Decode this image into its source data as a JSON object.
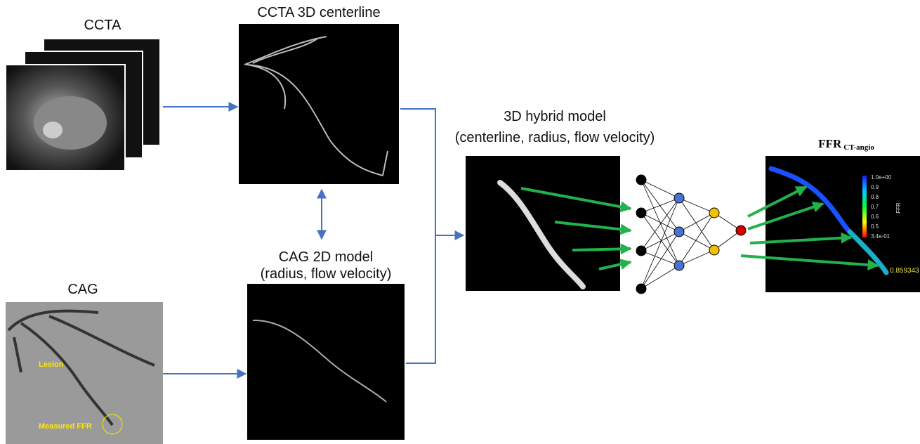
{
  "ccta": {
    "label": "CCTA",
    "centerline_title": "CCTA 3D centerline"
  },
  "cag": {
    "label": "CAG",
    "lesion": "Lesion",
    "measured": "Measured FFR",
    "model_title": [
      "CAG 2D model",
      "(radius, flow velocity)"
    ]
  },
  "hybrid": {
    "title": [
      "3D hybrid model",
      "(centerline, radius, flow velocity)"
    ]
  },
  "ffr": {
    "title": "FFR",
    "subscript": "CT-angio",
    "colorbar_ticks": [
      "1.0e+00",
      "0.9",
      "0.8",
      "0.7",
      "0.6",
      "0.5",
      "3.4e-01"
    ],
    "colorbar_label": "FFR",
    "value": "0.859343"
  }
}
